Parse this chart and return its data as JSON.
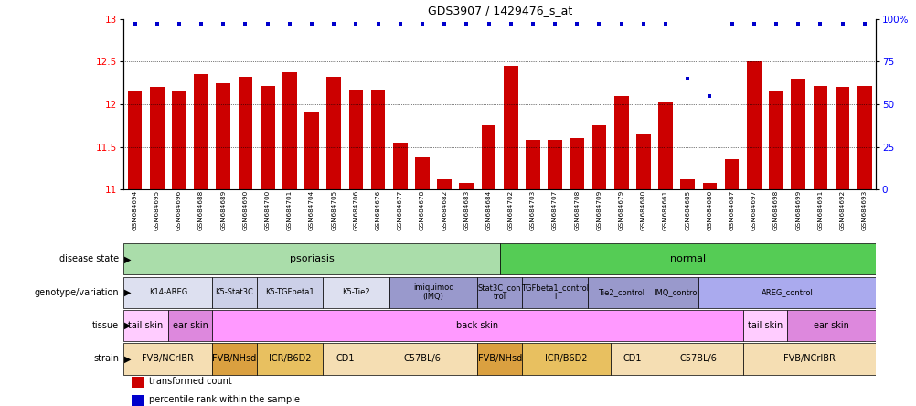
{
  "title": "GDS3907 / 1429476_s_at",
  "samples": [
    "GSM684694",
    "GSM684695",
    "GSM684696",
    "GSM684688",
    "GSM684689",
    "GSM684690",
    "GSM684700",
    "GSM684701",
    "GSM684704",
    "GSM684705",
    "GSM684706",
    "GSM684676",
    "GSM684677",
    "GSM684678",
    "GSM684682",
    "GSM684683",
    "GSM684684",
    "GSM684702",
    "GSM684703",
    "GSM684707",
    "GSM684708",
    "GSM684709",
    "GSM684679",
    "GSM684680",
    "GSM684661",
    "GSM684685",
    "GSM684686",
    "GSM684687",
    "GSM684697",
    "GSM684698",
    "GSM684699",
    "GSM684691",
    "GSM684692",
    "GSM684693"
  ],
  "bar_values": [
    12.15,
    12.2,
    12.15,
    12.36,
    12.25,
    12.32,
    12.22,
    12.38,
    11.9,
    12.32,
    12.17,
    12.17,
    11.55,
    11.38,
    11.12,
    11.08,
    11.75,
    12.45,
    11.58,
    11.58,
    11.6,
    11.75,
    12.1,
    11.65,
    12.02,
    11.12,
    11.08,
    11.36,
    12.5,
    12.15,
    12.3,
    12.22,
    12.2,
    12.22
  ],
  "percentile_values": [
    0.975,
    0.975,
    0.975,
    0.975,
    0.975,
    0.975,
    0.975,
    0.975,
    0.975,
    0.975,
    0.975,
    0.975,
    0.975,
    0.975,
    0.975,
    0.975,
    0.975,
    0.975,
    0.975,
    0.975,
    0.975,
    0.975,
    0.975,
    0.975,
    0.975,
    0.65,
    0.55,
    0.975,
    0.975,
    0.975,
    0.975,
    0.975,
    0.975,
    0.975
  ],
  "ylim": [
    11.0,
    13.0
  ],
  "yticks_left": [
    11.0,
    11.5,
    12.0,
    12.5,
    13.0
  ],
  "yticks_right": [
    0,
    25,
    50,
    75,
    100
  ],
  "bar_color": "#cc0000",
  "dot_color": "#0000cc",
  "disease_state_groups": [
    {
      "label": "psoriasis",
      "start": 0,
      "end": 17,
      "color": "#aaddaa"
    },
    {
      "label": "normal",
      "start": 17,
      "end": 34,
      "color": "#55cc55"
    }
  ],
  "genotype_groups": [
    {
      "label": "K14-AREG",
      "start": 0,
      "end": 4,
      "color": "#dde0f0"
    },
    {
      "label": "K5-Stat3C",
      "start": 4,
      "end": 6,
      "color": "#ccd0e8"
    },
    {
      "label": "K5-TGFbeta1",
      "start": 6,
      "end": 9,
      "color": "#ccd0e8"
    },
    {
      "label": "K5-Tie2",
      "start": 9,
      "end": 12,
      "color": "#dde0f0"
    },
    {
      "label": "imiquimod\n(IMQ)",
      "start": 12,
      "end": 16,
      "color": "#9999cc"
    },
    {
      "label": "Stat3C_con\ntrol",
      "start": 16,
      "end": 18,
      "color": "#9999cc"
    },
    {
      "label": "TGFbeta1_control\nl",
      "start": 18,
      "end": 21,
      "color": "#9999cc"
    },
    {
      "label": "Tie2_control",
      "start": 21,
      "end": 24,
      "color": "#9999cc"
    },
    {
      "label": "IMQ_control",
      "start": 24,
      "end": 26,
      "color": "#9999cc"
    },
    {
      "label": "AREG_control",
      "start": 26,
      "end": 34,
      "color": "#aaaaee"
    }
  ],
  "tissue_groups": [
    {
      "label": "tail skin",
      "start": 0,
      "end": 2,
      "color": "#ffccff"
    },
    {
      "label": "ear skin",
      "start": 2,
      "end": 4,
      "color": "#dd88dd"
    },
    {
      "label": "back skin",
      "start": 4,
      "end": 28,
      "color": "#ff99ff"
    },
    {
      "label": "tail skin",
      "start": 28,
      "end": 30,
      "color": "#ffccff"
    },
    {
      "label": "ear skin",
      "start": 30,
      "end": 34,
      "color": "#dd88dd"
    }
  ],
  "strain_groups": [
    {
      "label": "FVB/NCrIBR",
      "start": 0,
      "end": 4,
      "color": "#f5deb3"
    },
    {
      "label": "FVB/NHsd",
      "start": 4,
      "end": 6,
      "color": "#daa040"
    },
    {
      "label": "ICR/B6D2",
      "start": 6,
      "end": 9,
      "color": "#e8c060"
    },
    {
      "label": "CD1",
      "start": 9,
      "end": 11,
      "color": "#f5deb3"
    },
    {
      "label": "C57BL/6",
      "start": 11,
      "end": 16,
      "color": "#f5deb3"
    },
    {
      "label": "FVB/NHsd",
      "start": 16,
      "end": 18,
      "color": "#daa040"
    },
    {
      "label": "ICR/B6D2",
      "start": 18,
      "end": 22,
      "color": "#e8c060"
    },
    {
      "label": "CD1",
      "start": 22,
      "end": 24,
      "color": "#f5deb3"
    },
    {
      "label": "C57BL/6",
      "start": 24,
      "end": 28,
      "color": "#f5deb3"
    },
    {
      "label": "FVB/NCrIBR",
      "start": 28,
      "end": 34,
      "color": "#f5deb3"
    }
  ],
  "row_labels": [
    "disease state",
    "genotype/variation",
    "tissue",
    "strain"
  ],
  "legend_items": [
    {
      "label": "transformed count",
      "color": "#cc0000"
    },
    {
      "label": "percentile rank within the sample",
      "color": "#0000cc"
    }
  ]
}
